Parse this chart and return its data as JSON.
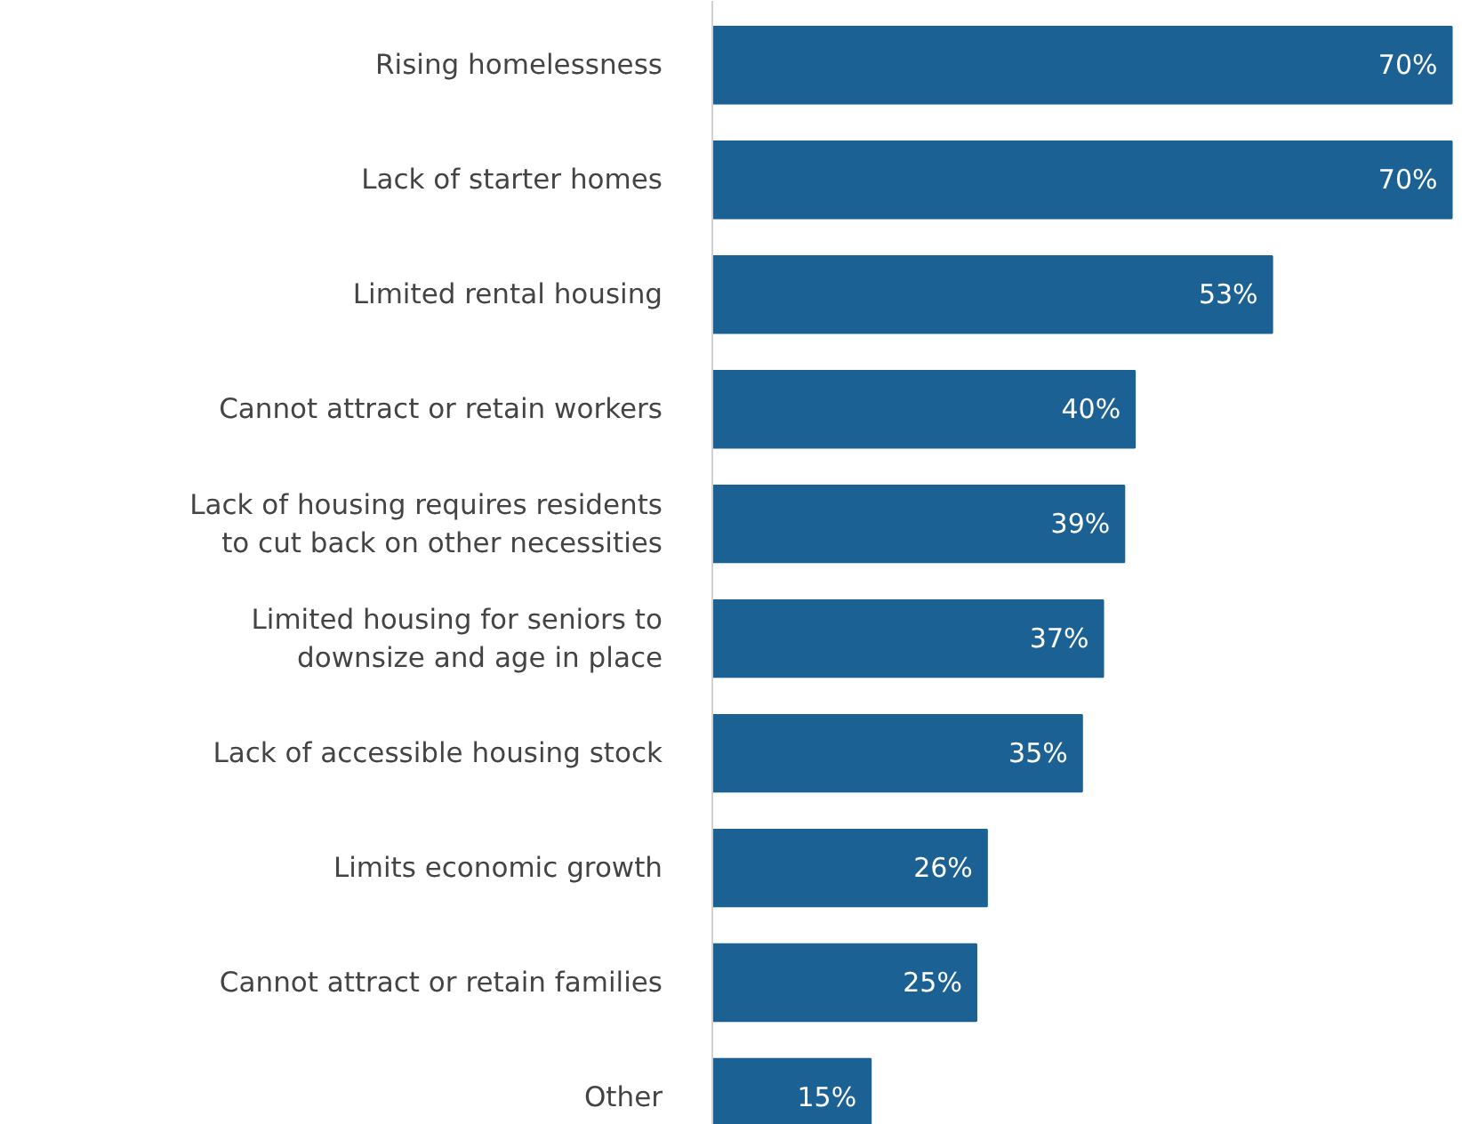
{
  "chart_data": {
    "type": "bar",
    "orientation": "horizontal",
    "categories": [
      "Rising homelessness",
      "Lack of starter homes",
      "Limited rental housing",
      "Cannot attract or retain workers",
      "Lack of housing requires residents to cut back on other necessities",
      "Limited housing for seniors to downsize and age in place",
      "Lack of accessible housing stock",
      "Limits economic growth",
      "Cannot attract or retain families",
      "Other"
    ],
    "values": [
      70,
      70,
      53,
      40,
      39,
      37,
      35,
      26,
      25,
      15
    ],
    "value_labels": [
      "70%",
      "70%",
      "53%",
      "40%",
      "39%",
      "37%",
      "35%",
      "26%",
      "25%",
      "15%"
    ],
    "color": "#1b6194",
    "tick_labels": "y",
    "grid": false
  }
}
